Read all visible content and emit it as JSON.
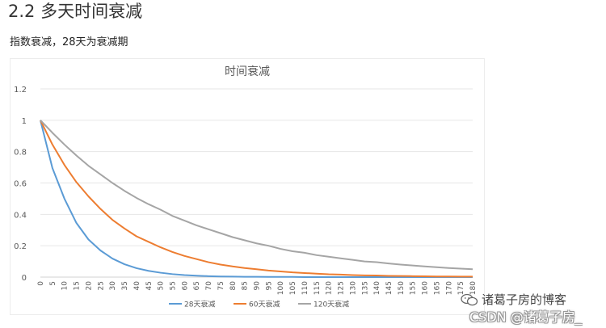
{
  "page": {
    "heading": "2.2 多天时间衰减",
    "subtitle": "指数衰减，28天为衰减期"
  },
  "watermark": {
    "blog": "诸葛子房的博客",
    "csdn": "CSDN @诸葛子房_"
  },
  "icons": {
    "wechat": "wechat-icon"
  },
  "chart_data": {
    "type": "line",
    "title": "时间衰减",
    "xlabel": "",
    "ylabel": "",
    "ylim": [
      0,
      1.2
    ],
    "yticks": [
      "0",
      "0.2",
      "0.4",
      "0.6",
      "0.8",
      "1",
      "1.2"
    ],
    "grid": true,
    "legend_position": "bottom",
    "categories": [
      "0",
      "5",
      "10",
      "15",
      "20",
      "25",
      "30",
      "35",
      "40",
      "45",
      "50",
      "55",
      "60",
      "65",
      "70",
      "75",
      "80",
      "85",
      "90",
      "95",
      "100",
      "105",
      "110",
      "115",
      "120",
      "125",
      "130",
      "135",
      "140",
      "145",
      "150",
      "155",
      "160",
      "165",
      "170",
      "175",
      "180"
    ],
    "series": [
      {
        "name": "28天衰减",
        "color": "#5b9bd5",
        "values": [
          1,
          0.695,
          0.5,
          0.345,
          0.24,
          0.17,
          0.118,
          0.082,
          0.057,
          0.04,
          0.028,
          0.019,
          0.013,
          0.009,
          0.006,
          0.004,
          0.003,
          0.002,
          0.002,
          0.001,
          0.001,
          0.001,
          0,
          0,
          0,
          0,
          0,
          0,
          0,
          0,
          0,
          0,
          0,
          0,
          0,
          0,
          0
        ]
      },
      {
        "name": "60天衰减",
        "color": "#ed7d31",
        "values": [
          1,
          0.845,
          0.715,
          0.605,
          0.515,
          0.435,
          0.365,
          0.31,
          0.26,
          0.225,
          0.19,
          0.16,
          0.135,
          0.115,
          0.095,
          0.08,
          0.068,
          0.058,
          0.05,
          0.042,
          0.036,
          0.03,
          0.026,
          0.022,
          0.018,
          0.016,
          0.013,
          0.011,
          0.01,
          0.008,
          0.007,
          0.006,
          0.005,
          0.004,
          0.004,
          0.003,
          0.003
        ]
      },
      {
        "name": "120天衰减",
        "color": "#a5a5a5",
        "values": [
          1,
          0.92,
          0.845,
          0.775,
          0.71,
          0.655,
          0.6,
          0.55,
          0.505,
          0.465,
          0.43,
          0.39,
          0.36,
          0.33,
          0.305,
          0.28,
          0.255,
          0.235,
          0.215,
          0.2,
          0.18,
          0.165,
          0.155,
          0.14,
          0.13,
          0.12,
          0.11,
          0.1,
          0.095,
          0.087,
          0.08,
          0.074,
          0.068,
          0.063,
          0.058,
          0.054,
          0.05
        ]
      }
    ]
  }
}
